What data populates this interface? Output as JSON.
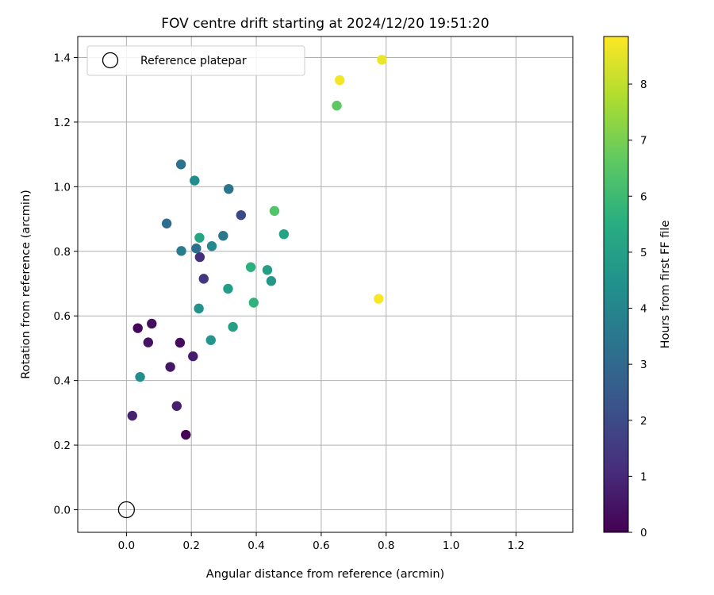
{
  "chart_data": {
    "type": "scatter",
    "title": "FOV centre drift starting at 2024/12/20 19:51:20",
    "xlabel": "Angular distance from reference (arcmin)",
    "ylabel": "Rotation from reference (arcmin)",
    "xlim": [
      -0.15,
      1.375
    ],
    "ylim": [
      -0.07,
      1.465
    ],
    "xticks": [
      0.0,
      0.2,
      0.4,
      0.6,
      0.8,
      1.0,
      1.2
    ],
    "yticks": [
      0.0,
      0.2,
      0.4,
      0.6,
      0.8,
      1.0,
      1.2,
      1.4
    ],
    "xtick_labels": [
      "0.0",
      "0.2",
      "0.4",
      "0.6",
      "0.8",
      "1.0",
      "1.2"
    ],
    "ytick_labels": [
      "0.0",
      "0.2",
      "0.4",
      "0.6",
      "0.8",
      "1.0",
      "1.2",
      "1.4"
    ],
    "grid": true,
    "colormap": "viridis",
    "colorbar": {
      "label": "Hours from first FF file",
      "range": [
        0,
        8.85
      ],
      "ticks": [
        0,
        1,
        2,
        3,
        4,
        5,
        6,
        7,
        8
      ],
      "tick_labels": [
        "0",
        "1",
        "2",
        "3",
        "4",
        "5",
        "6",
        "7",
        "8"
      ]
    },
    "reference": {
      "label": "Reference platepar",
      "x": 0.0,
      "y": 0.0
    },
    "legend_position": "top-left",
    "points": [
      {
        "x": 0.035,
        "y": 0.562,
        "t": 0.15
      },
      {
        "x": 0.078,
        "y": 0.576,
        "t": 0.35
      },
      {
        "x": 0.067,
        "y": 0.518,
        "t": 0.45
      },
      {
        "x": 0.165,
        "y": 0.517,
        "t": 0.25
      },
      {
        "x": 0.135,
        "y": 0.442,
        "t": 0.55
      },
      {
        "x": 0.205,
        "y": 0.475,
        "t": 0.65
      },
      {
        "x": 0.155,
        "y": 0.321,
        "t": 0.75
      },
      {
        "x": 0.018,
        "y": 0.291,
        "t": 0.85
      },
      {
        "x": 0.183,
        "y": 0.232,
        "t": 0.1
      },
      {
        "x": 0.238,
        "y": 0.715,
        "t": 1.45
      },
      {
        "x": 0.226,
        "y": 0.782,
        "t": 1.2
      },
      {
        "x": 0.353,
        "y": 0.912,
        "t": 1.9
      },
      {
        "x": 0.124,
        "y": 0.886,
        "t": 3.1
      },
      {
        "x": 0.168,
        "y": 1.069,
        "t": 3.3
      },
      {
        "x": 0.315,
        "y": 0.993,
        "t": 3.4
      },
      {
        "x": 0.169,
        "y": 0.801,
        "t": 3.7
      },
      {
        "x": 0.215,
        "y": 0.809,
        "t": 3.2
      },
      {
        "x": 0.298,
        "y": 0.848,
        "t": 3.5
      },
      {
        "x": 0.263,
        "y": 0.816,
        "t": 4.1
      },
      {
        "x": 0.21,
        "y": 1.019,
        "t": 4.3
      },
      {
        "x": 0.225,
        "y": 0.842,
        "t": 5.2
      },
      {
        "x": 0.223,
        "y": 0.623,
        "t": 4.5
      },
      {
        "x": 0.26,
        "y": 0.525,
        "t": 4.6
      },
      {
        "x": 0.042,
        "y": 0.411,
        "t": 4.4
      },
      {
        "x": 0.313,
        "y": 0.684,
        "t": 4.9
      },
      {
        "x": 0.328,
        "y": 0.566,
        "t": 5.0
      },
      {
        "x": 0.383,
        "y": 0.751,
        "t": 5.6
      },
      {
        "x": 0.392,
        "y": 0.641,
        "t": 5.7
      },
      {
        "x": 0.434,
        "y": 0.742,
        "t": 4.95
      },
      {
        "x": 0.446,
        "y": 0.708,
        "t": 4.7
      },
      {
        "x": 0.485,
        "y": 0.853,
        "t": 5.1
      },
      {
        "x": 0.456,
        "y": 0.925,
        "t": 6.4
      },
      {
        "x": 0.648,
        "y": 1.251,
        "t": 6.6
      },
      {
        "x": 0.657,
        "y": 1.33,
        "t": 8.7
      },
      {
        "x": 0.787,
        "y": 1.393,
        "t": 8.6
      },
      {
        "x": 0.777,
        "y": 0.653,
        "t": 8.8
      }
    ]
  }
}
